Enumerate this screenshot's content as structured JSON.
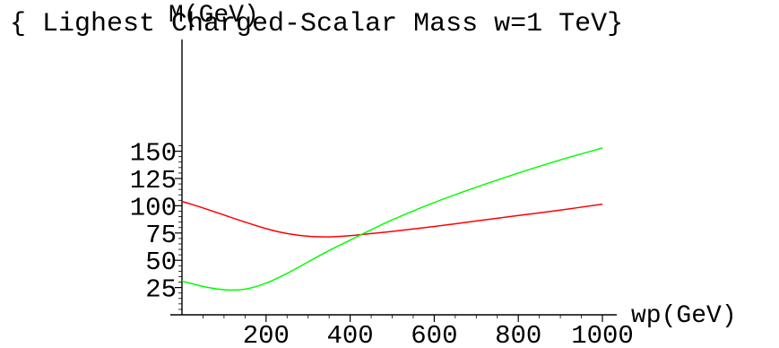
{
  "chart_data": {
    "type": "line",
    "title": "{ Lighest Charged-Scalar Mass w=1 TeV}",
    "xlabel": "wp(GeV)",
    "ylabel": "M(GeV)",
    "xlim": [
      0,
      1000
    ],
    "ylim": [
      0,
      160
    ],
    "xticks": [
      200,
      400,
      600,
      800,
      1000
    ],
    "yticks": [
      25,
      50,
      75,
      100,
      125,
      150
    ],
    "grid": false,
    "legend": "none",
    "series": [
      {
        "color": "#ff0000",
        "x": [
          0,
          50,
          100,
          150,
          200,
          250,
          300,
          350,
          400,
          450,
          500,
          600,
          700,
          800,
          900,
          1000
        ],
        "y": [
          104,
          98,
          91.5,
          85,
          79,
          74.5,
          72,
          71.5,
          72.5,
          74.5,
          76.5,
          81,
          86,
          91,
          96,
          101.5
        ]
      },
      {
        "color": "#00ff00",
        "x": [
          0,
          50,
          100,
          150,
          200,
          250,
          300,
          350,
          400,
          450,
          500,
          600,
          700,
          800,
          900,
          1000
        ],
        "y": [
          31,
          26,
          23,
          23.5,
          29,
          38,
          48.5,
          59,
          68.5,
          78,
          87,
          103,
          117,
          130,
          142,
          153
        ]
      }
    ]
  }
}
